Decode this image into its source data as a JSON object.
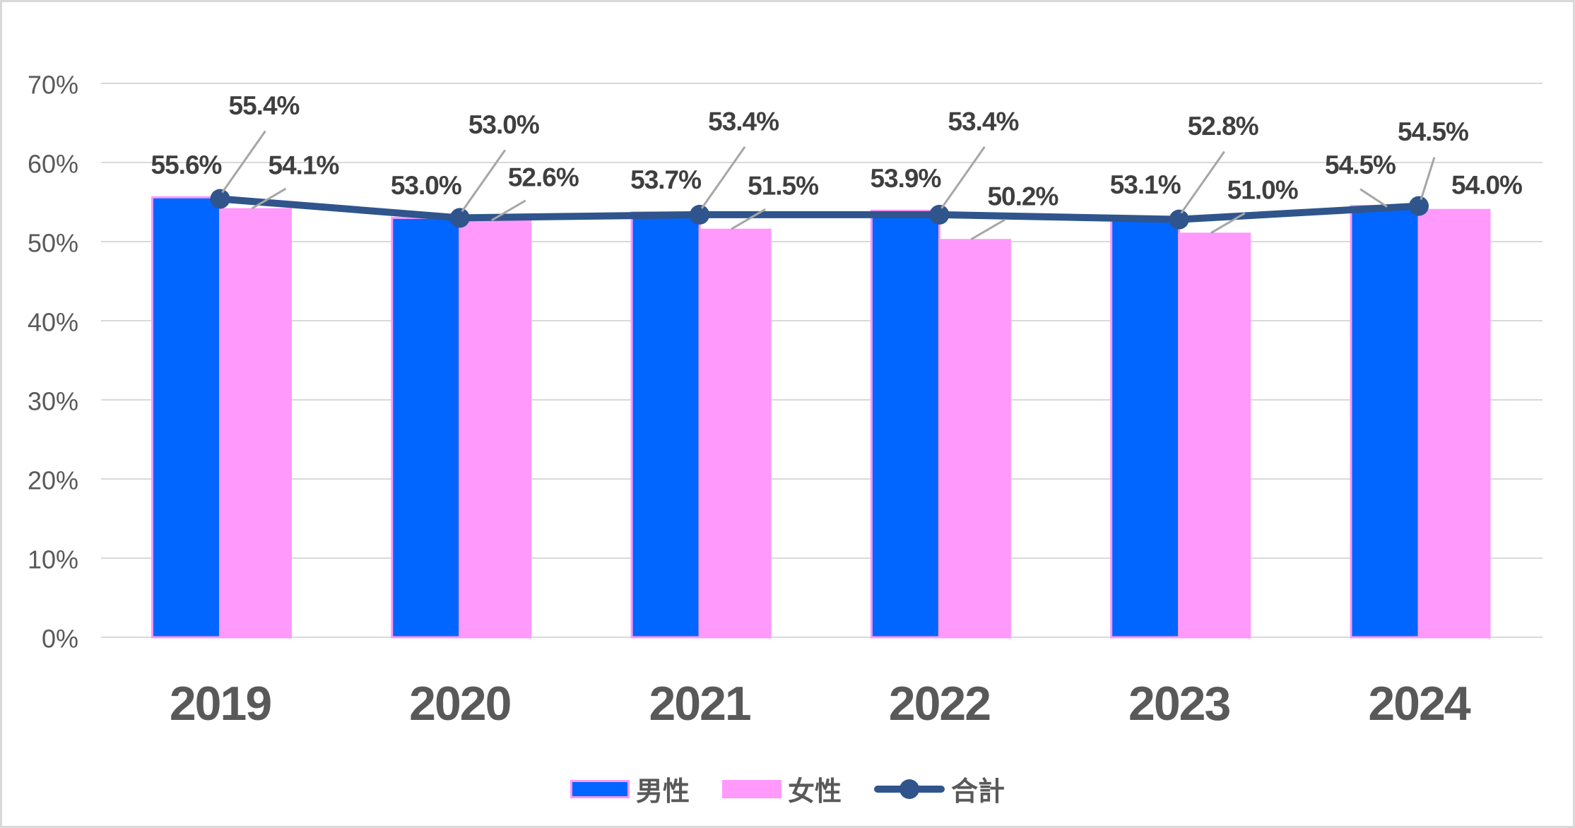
{
  "chart_data": {
    "type": "bar",
    "combo": "grouped bars with line overlay",
    "categories": [
      "2019",
      "2020",
      "2021",
      "2022",
      "2023",
      "2024"
    ],
    "series": [
      {
        "name": "男性",
        "type": "bar",
        "color": "#0066FF",
        "border_color": "#FF97FA",
        "values": [
          55.6,
          53.0,
          53.7,
          53.9,
          53.1,
          54.5
        ],
        "labels": [
          "55.6%",
          "53.0%",
          "53.7%",
          "53.9%",
          "53.1%",
          "54.5%"
        ]
      },
      {
        "name": "女性",
        "type": "bar",
        "color": "#FF99FC",
        "border_color": "#FF99FC",
        "values": [
          54.1,
          52.6,
          51.5,
          50.2,
          51.0,
          54.0
        ],
        "labels": [
          "54.1%",
          "52.6%",
          "51.5%",
          "50.2%",
          "51.0%",
          "54.0%"
        ]
      },
      {
        "name": "合計",
        "type": "line",
        "color": "#2F558C",
        "values": [
          55.4,
          53.0,
          53.4,
          53.4,
          52.8,
          54.5
        ],
        "labels": [
          "55.4%",
          "53.0%",
          "53.4%",
          "53.4%",
          "52.8%",
          "54.5%"
        ]
      }
    ],
    "title": "",
    "xlabel": "",
    "ylabel": "",
    "ylim": [
      0,
      70
    ],
    "ytick_step": 10,
    "ytick_labels": [
      "0%",
      "10%",
      "20%",
      "30%",
      "40%",
      "50%",
      "60%",
      "70%"
    ],
    "grid": true,
    "legend_position": "bottom",
    "colors": {
      "data_label": "#3F3F3F",
      "axis_label": "#595959",
      "gridline": "#D9D9D9",
      "leader_line": "#A6A6A6",
      "background": "#FFFFFF",
      "frame_border": "#D9D9D9"
    }
  }
}
